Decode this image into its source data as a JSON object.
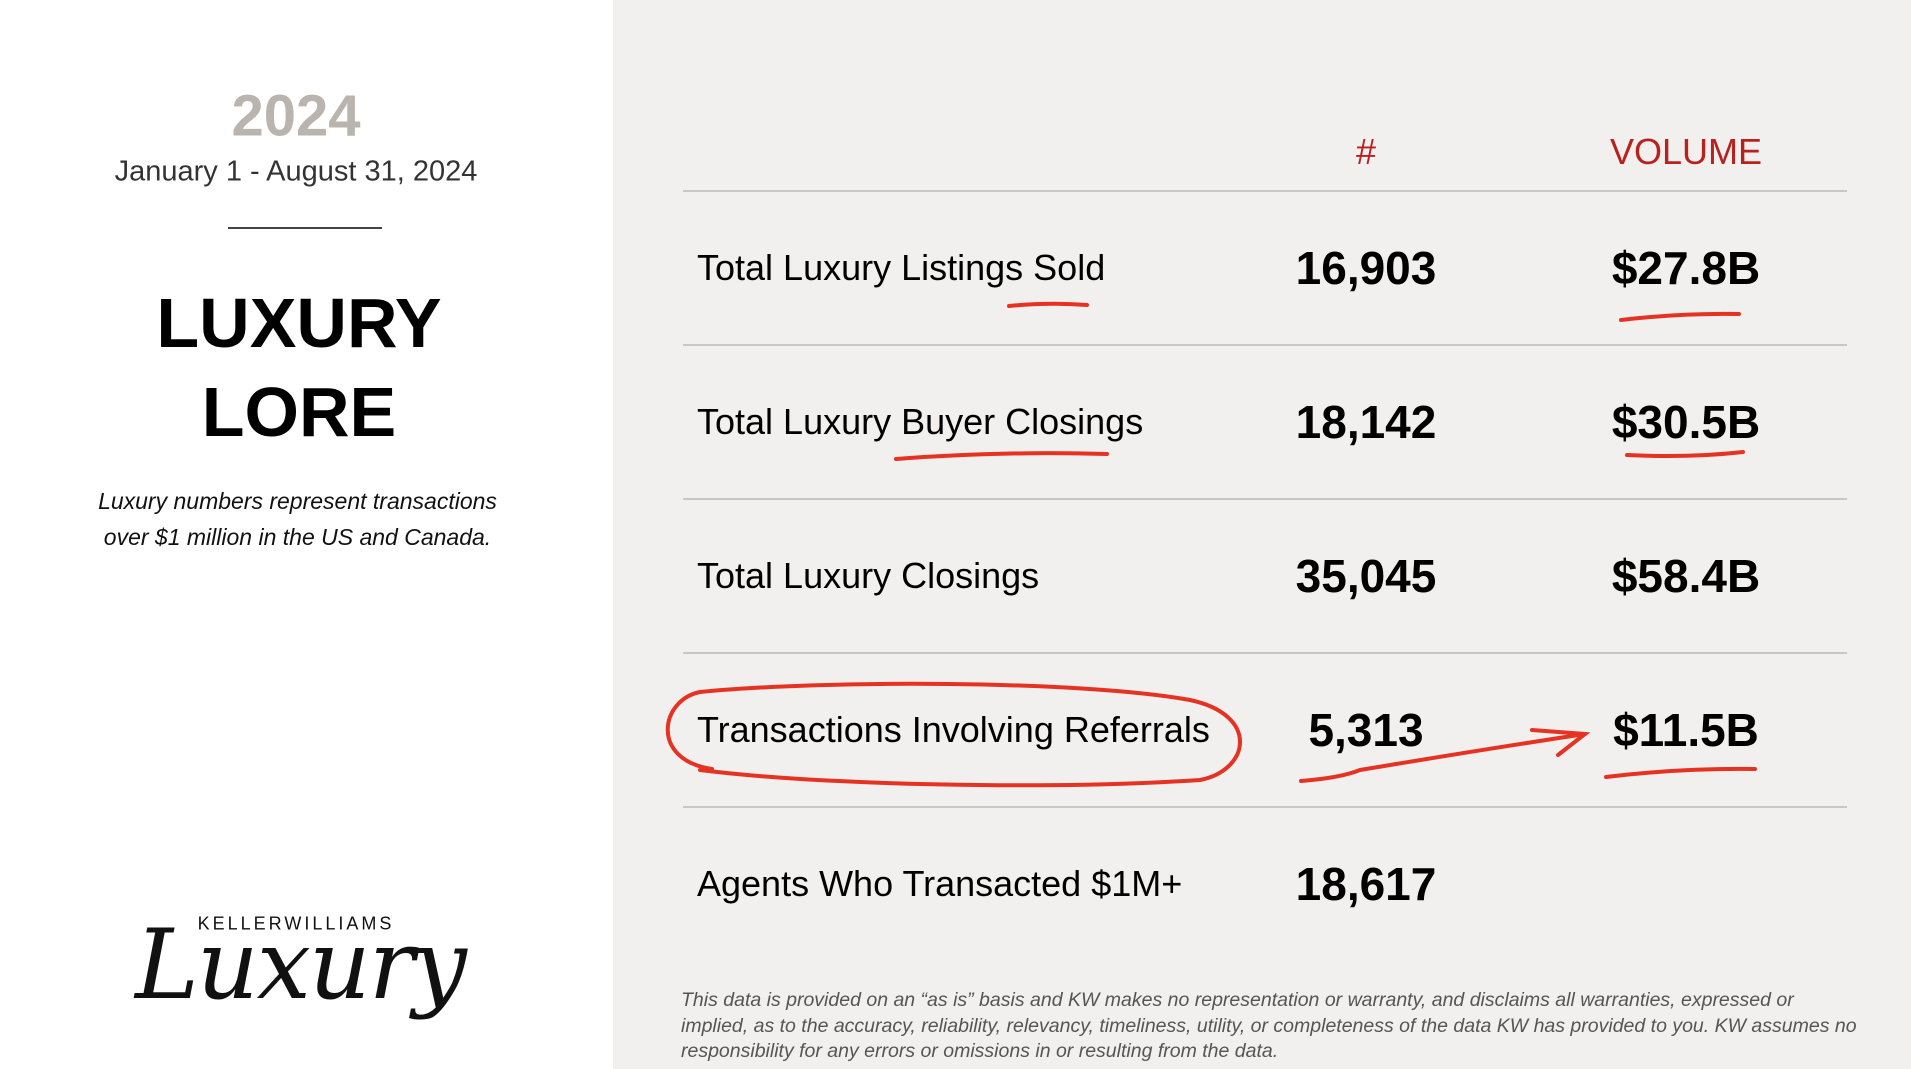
{
  "left": {
    "year": "2024",
    "date_range": "January 1 - August 31, 2024",
    "title": [
      "LUXURY",
      "LORE"
    ],
    "note": "Luxury numbers represent transactions over $1 million in the US and Canada.",
    "logo": {
      "brand": "KELLERWILLIAMS",
      "script": "Luxury"
    }
  },
  "table": {
    "headers": [
      "#",
      "VOLUME"
    ],
    "rows": [
      {
        "label": "Total Luxury Listings Sold",
        "count": "16,903",
        "volume": "$27.8B"
      },
      {
        "label": "Total Luxury Buyer Closings",
        "count": "18,142",
        "volume": "$30.5B"
      },
      {
        "label": "Total Luxury Closings",
        "count": "35,045",
        "volume": "$58.4B"
      },
      {
        "label": "Transactions Involving Referrals",
        "count": "5,313",
        "volume": "$11.5B"
      },
      {
        "label": "Agents Who Transacted $1M+",
        "count": "18,617"
      }
    ]
  },
  "disclaimer": "This data is provided on an “as is” basis and KW makes no representation or warranty, and disclaims all warranties, expressed or implied, as to the accuracy, reliability, relevancy, timeliness, utility, or completeness of the data KW has provided to you. KW assumes no responsibility for any errors or omissions in or resulting from the data."
}
